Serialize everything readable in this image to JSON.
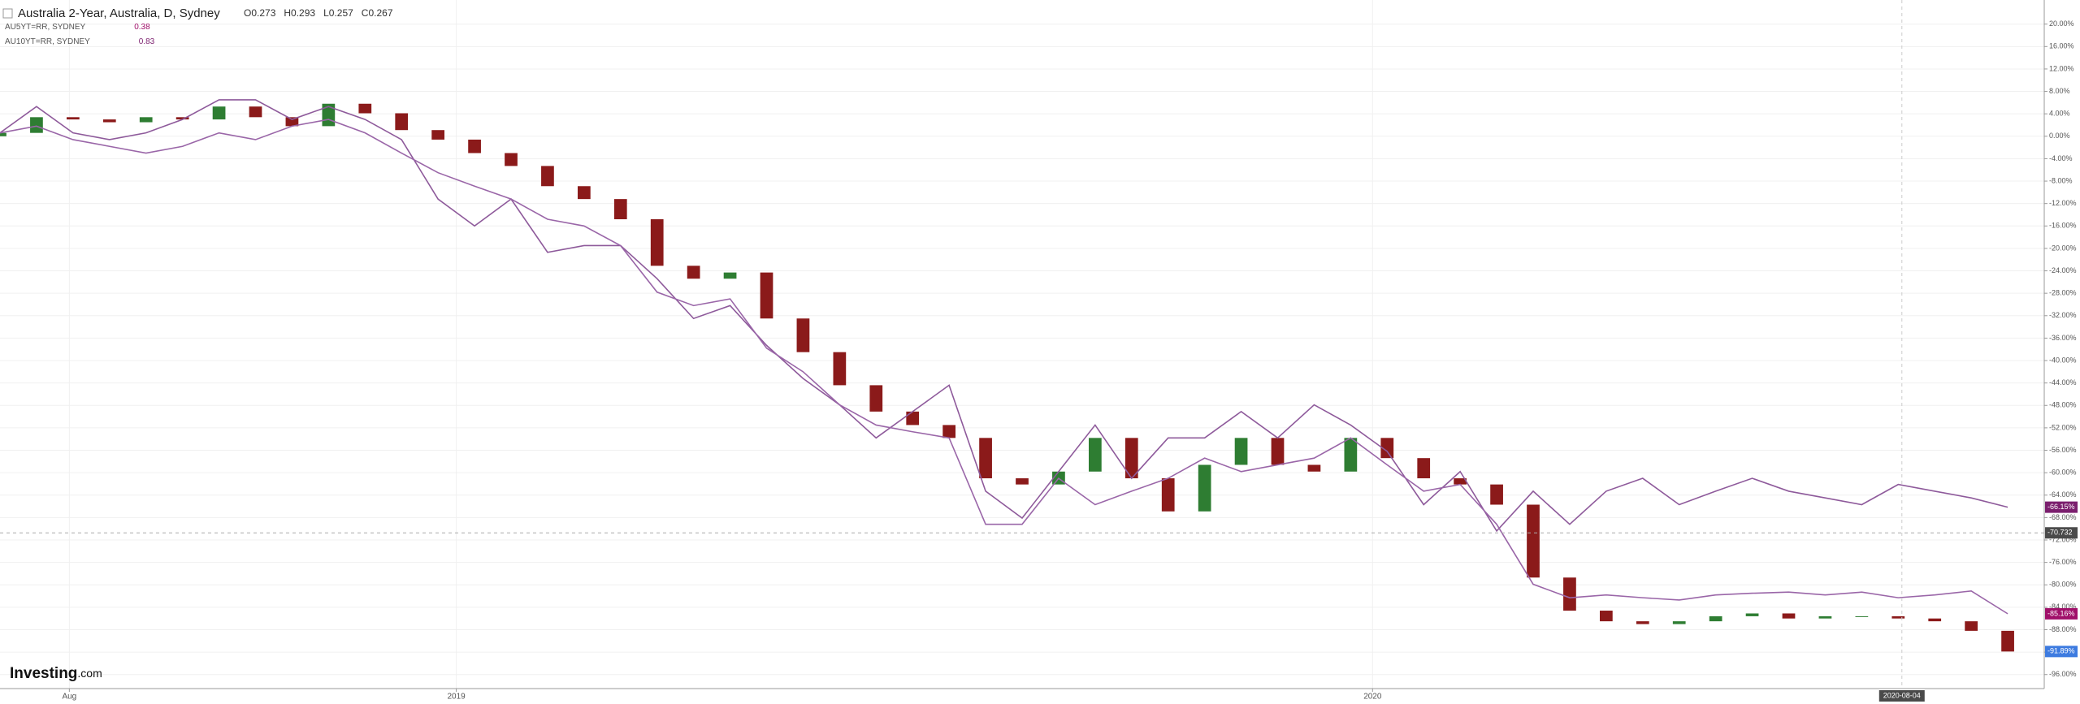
{
  "chart_data": {
    "type": "candlestick",
    "title": "Australia 2-Year, Australia, D, Sydney",
    "ohlc": [
      {
        "label": "O",
        "value": 0.273
      },
      {
        "label": "H",
        "value": 0.293
      },
      {
        "label": "L",
        "value": 0.257
      },
      {
        "label": "C",
        "value": 0.267
      }
    ],
    "logo": "Investing",
    "logo_suffix": ".com",
    "x": [
      0,
      1,
      2,
      3,
      4,
      5,
      6,
      7,
      8,
      9,
      10,
      11,
      12,
      13,
      14,
      15,
      16,
      17,
      18,
      19,
      20,
      21,
      22,
      23,
      24,
      25,
      26,
      27,
      28,
      29,
      30,
      31,
      32,
      33,
      34,
      35,
      36,
      37,
      38,
      39,
      40,
      41,
      42,
      43,
      44,
      45,
      46,
      47,
      48,
      49,
      50,
      51,
      52,
      53,
      54,
      55
    ],
    "open": [
      0.0,
      0.6,
      3.4,
      3.0,
      2.5,
      3.4,
      3.0,
      5.3,
      3.4,
      1.8,
      5.8,
      4.1,
      1.1,
      -0.6,
      -3.0,
      -5.3,
      -8.9,
      -11.2,
      -14.8,
      -23.1,
      -25.4,
      -24.3,
      -32.5,
      -38.5,
      -44.4,
      -49.1,
      -51.5,
      -53.8,
      -61.0,
      -62.1,
      -59.8,
      -53.8,
      -61.0,
      -66.9,
      -58.6,
      -53.8,
      -58.6,
      -59.8,
      -53.8,
      -57.4,
      -61.0,
      -62.1,
      -65.7,
      -78.7,
      -84.6,
      -86.5,
      -87.0,
      -86.5,
      -85.6,
      -85.1,
      -86.0,
      -85.6,
      -85.6,
      -86.0,
      -86.5,
      -88.2
    ],
    "close": [
      0.6,
      3.4,
      3.0,
      2.5,
      3.4,
      3.0,
      5.3,
      3.4,
      1.8,
      5.8,
      4.1,
      1.1,
      -0.6,
      -3.0,
      -5.3,
      -8.9,
      -11.2,
      -14.8,
      -23.1,
      -25.4,
      -24.3,
      -32.5,
      -38.5,
      -44.4,
      -49.1,
      -51.5,
      -53.8,
      -61.0,
      -62.1,
      -59.8,
      -53.8,
      -61.0,
      -66.9,
      -58.6,
      -53.8,
      -58.6,
      -59.8,
      -53.8,
      -57.4,
      -61.0,
      -62.1,
      -65.7,
      -78.7,
      -84.6,
      -86.5,
      -87.0,
      -86.5,
      -85.6,
      -85.1,
      -86.0,
      -85.6,
      -85.6,
      -86.0,
      -86.5,
      -88.2,
      -91.89
    ],
    "close_last_label": "-91.89%",
    "up_color": "#2e7d32",
    "down_color": "#8b1a1a",
    "last_label_color": "#3d7be0",
    "series": [
      {
        "name": "AU10YT=RR, SYDNEY",
        "legend_value": 0.83,
        "color": "#8e5a9b",
        "label_color": "#7b1f6e",
        "values": [
          0.6,
          5.3,
          0.6,
          -0.6,
          0.6,
          3.0,
          6.5,
          6.5,
          3.0,
          5.3,
          3.0,
          -0.6,
          -11.2,
          -16.0,
          -11.2,
          -20.7,
          -19.5,
          -19.5,
          -25.4,
          -32.5,
          -30.2,
          -37.3,
          -43.2,
          -47.9,
          -53.8,
          -49.1,
          -44.4,
          -63.3,
          -68.1,
          -59.8,
          -51.5,
          -61.0,
          -53.8,
          -53.8,
          -49.1,
          -53.8,
          -47.9,
          -51.5,
          -56.2,
          -65.7,
          -59.8,
          -70.4,
          -63.3,
          -69.2,
          -63.3,
          -61.0,
          -65.7,
          -63.3,
          -61.0,
          -63.3,
          -64.5,
          -65.7,
          -62.1,
          -63.3,
          -64.5,
          -66.15
        ],
        "last_label": "-66.15%"
      },
      {
        "name": "AU5YT=RR, SYDNEY",
        "legend_value": 0.38,
        "color": "#9a66a8",
        "label_color": "#a0106a",
        "values": [
          0.6,
          1.8,
          -0.6,
          -1.8,
          -3.0,
          -1.8,
          0.6,
          -0.6,
          1.8,
          3.0,
          0.6,
          -3.0,
          -6.5,
          -8.9,
          -11.2,
          -14.8,
          -16.0,
          -19.5,
          -27.8,
          -30.2,
          -29.0,
          -37.8,
          -42.0,
          -47.9,
          -51.5,
          -52.7,
          -53.8,
          -69.2,
          -69.2,
          -61.0,
          -65.7,
          -63.3,
          -61.0,
          -57.4,
          -59.8,
          -58.6,
          -57.4,
          -53.8,
          -58.6,
          -63.3,
          -62.1,
          -69.2,
          -79.9,
          -82.3,
          -81.8,
          -82.3,
          -82.7,
          -81.8,
          -81.5,
          -81.3,
          -81.8,
          -81.3,
          -82.3,
          -81.8,
          -81.1,
          -85.16
        ],
        "last_label": "-85.16%"
      }
    ],
    "crosshair": {
      "y": -70.732,
      "x": 52.1,
      "x_label": "2020-08-04"
    },
    "xlim": [
      0,
      56
    ],
    "xticks": [
      {
        "value": 1.9,
        "label": "Aug"
      },
      {
        "value": 12.5,
        "label": "2019"
      },
      {
        "value": 37.6,
        "label": "2020"
      }
    ],
    "ylim": [
      -98.5,
      24.3
    ],
    "yticks": [
      {
        "value": 20,
        "label": "20.00%"
      },
      {
        "value": 16,
        "label": "16.00%"
      },
      {
        "value": 12,
        "label": "12.00%"
      },
      {
        "value": 8,
        "label": "8.00%"
      },
      {
        "value": 4,
        "label": "4.00%"
      },
      {
        "value": 0,
        "label": "0.00%"
      },
      {
        "value": -4,
        "label": "-4.00%"
      },
      {
        "value": -8,
        "label": "-8.00%"
      },
      {
        "value": -12,
        "label": "-12.00%"
      },
      {
        "value": -16,
        "label": "-16.00%"
      },
      {
        "value": -20,
        "label": "-20.00%"
      },
      {
        "value": -24,
        "label": "-24.00%"
      },
      {
        "value": -28,
        "label": "-28.00%"
      },
      {
        "value": -32,
        "label": "-32.00%"
      },
      {
        "value": -36,
        "label": "-36.00%"
      },
      {
        "value": -40,
        "label": "-40.00%"
      },
      {
        "value": -44,
        "label": "-44.00%"
      },
      {
        "value": -48,
        "label": "-48.00%"
      },
      {
        "value": -52,
        "label": "-52.00%"
      },
      {
        "value": -56,
        "label": "-56.00%"
      },
      {
        "value": -60,
        "label": "-60.00%"
      },
      {
        "value": -64,
        "label": "-64.00%"
      },
      {
        "value": -68,
        "label": "-68.00%"
      },
      {
        "value": -72,
        "label": "-72.00%"
      },
      {
        "value": -76,
        "label": "-76.00%"
      },
      {
        "value": -80,
        "label": "-80.00%"
      },
      {
        "value": -84,
        "label": "-84.00%"
      },
      {
        "value": -88,
        "label": "-88.00%"
      },
      {
        "value": -92,
        "label": "-92.00%"
      },
      {
        "value": -96,
        "label": "-96.00%"
      }
    ],
    "grid": true
  }
}
